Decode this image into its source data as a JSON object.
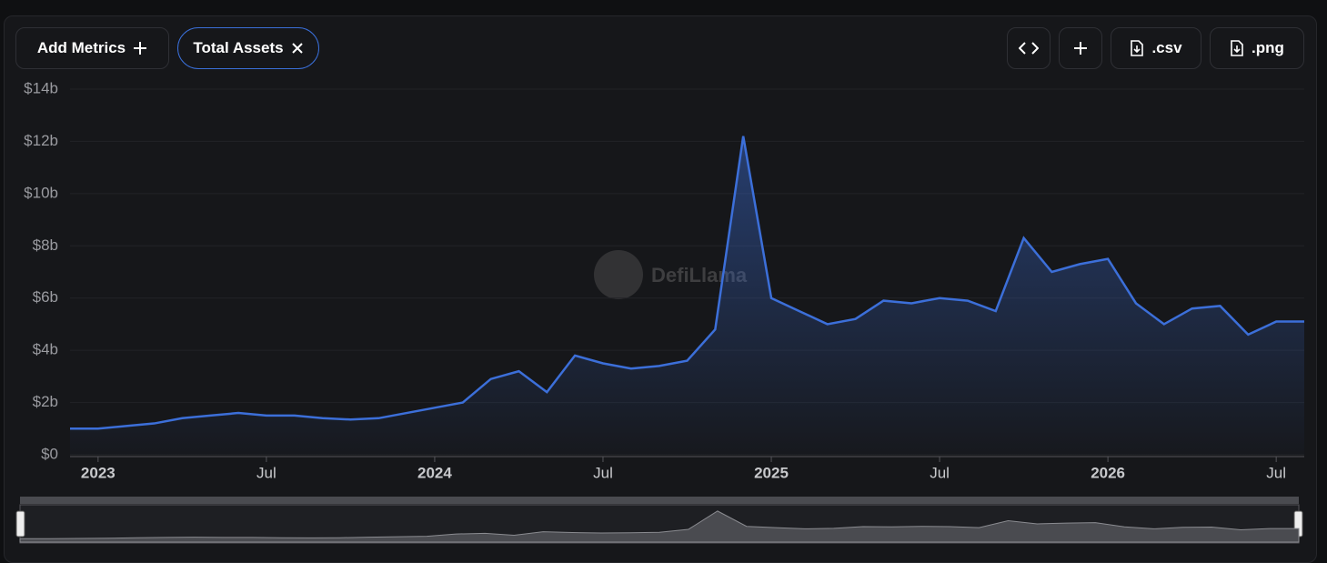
{
  "toolbar": {
    "add_metrics": "Add Metrics",
    "active_metric": "Total Assets",
    "csv": ".csv",
    "png": ".png"
  },
  "chart_data": {
    "type": "area",
    "watermark": "DefiLlama",
    "x": [
      "2022-12",
      "2023-01",
      "2023-02",
      "2023-03",
      "2023-04",
      "2023-05",
      "2023-06",
      "2023-07",
      "2023-08",
      "2023-09",
      "2023-10",
      "2023-11",
      "2023-12",
      "2024-01",
      "2024-02",
      "2024-03",
      "2024-04",
      "2024-05",
      "2024-06",
      "2024-07",
      "2024-08",
      "2024-09",
      "2024-10",
      "2024-11",
      "2024-12",
      "2025-01",
      "2025-02",
      "2025-03",
      "2025-04",
      "2025-05",
      "2025-06",
      "2025-07",
      "2025-08",
      "2025-09",
      "2025-10",
      "2025-11",
      "2025-12",
      "2026-01",
      "2026-02",
      "2026-03",
      "2026-04",
      "2026-05",
      "2026-06",
      "2026-07",
      "2026-08"
    ],
    "series": [
      {
        "name": "Total Assets",
        "color": "#3c6fd9",
        "values": [
          1.0,
          1.0,
          1.1,
          1.2,
          1.4,
          1.5,
          1.6,
          1.5,
          1.5,
          1.4,
          1.35,
          1.4,
          1.6,
          1.8,
          2.0,
          2.9,
          3.2,
          2.4,
          3.8,
          3.5,
          3.3,
          3.4,
          3.6,
          4.8,
          12.2,
          6.0,
          5.5,
          5.0,
          5.2,
          5.9,
          5.8,
          6.0,
          5.9,
          5.5,
          8.3,
          7.0,
          7.3,
          7.5,
          5.8,
          5.0,
          5.6,
          5.7,
          4.6,
          5.1,
          5.1
        ]
      }
    ],
    "xlim": [
      "2022-12",
      "2026-08"
    ],
    "xticks": [
      {
        "value": "2023-01",
        "label": "2023"
      },
      {
        "value": "2023-07",
        "label": "Jul"
      },
      {
        "value": "2024-01",
        "label": "2024"
      },
      {
        "value": "2024-07",
        "label": "Jul"
      },
      {
        "value": "2025-01",
        "label": "2025"
      },
      {
        "value": "2025-07",
        "label": "Jul"
      },
      {
        "value": "2026-01",
        "label": "2026"
      },
      {
        "value": "2026-07",
        "label": "Jul"
      }
    ],
    "ylim": [
      0,
      14
    ],
    "yticks": [
      {
        "value": 0,
        "label": "$0"
      },
      {
        "value": 2,
        "label": "$2b"
      },
      {
        "value": 4,
        "label": "$4b"
      },
      {
        "value": 6,
        "label": "$6b"
      },
      {
        "value": 8,
        "label": "$8b"
      },
      {
        "value": 10,
        "label": "$10b"
      },
      {
        "value": 12,
        "label": "$12b"
      },
      {
        "value": 14,
        "label": "$14b"
      }
    ],
    "grid": true
  }
}
